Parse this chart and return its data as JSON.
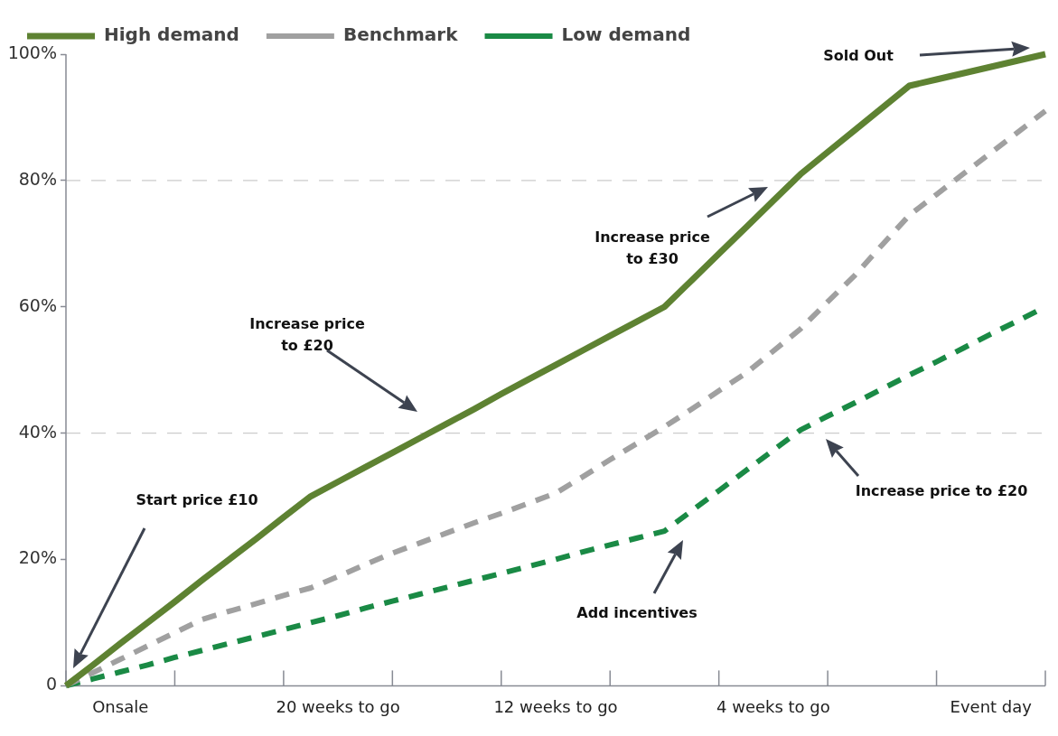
{
  "chart_data": {
    "type": "line",
    "categories": [
      null,
      null,
      "Onsale",
      null,
      null,
      null,
      null,
      null,
      null,
      null,
      "20 weeks to go",
      null,
      null,
      null,
      null,
      null,
      null,
      null,
      "12 weeks to go",
      null,
      null,
      null,
      null,
      null,
      null,
      null,
      "4 weeks to go",
      null,
      null,
      null,
      null,
      null,
      null,
      null,
      "Event day",
      null,
      null
    ],
    "series": [
      {
        "name": "High demand",
        "color": "#5e8232",
        "line_style": "solid",
        "values": [
          0,
          3.3,
          6.7,
          10,
          13.3,
          16.7,
          20,
          23.3,
          26.7,
          30,
          32.3,
          34.6,
          36.9,
          39.2,
          41.5,
          43.8,
          46.2,
          48.5,
          50.8,
          53.1,
          55.4,
          57.7,
          60,
          64.2,
          68.4,
          72.6,
          76.8,
          81,
          84.5,
          88,
          91.5,
          95,
          96,
          97,
          98,
          99,
          100
        ]
      },
      {
        "name": "Benchmark",
        "color": "#a0a0a0",
        "line_style": "dashed",
        "values": [
          0,
          2.1,
          4.2,
          6.3,
          8.4,
          10.5,
          11.8,
          13,
          14.3,
          15.5,
          17.3,
          19.2,
          21,
          22.6,
          24.2,
          25.8,
          27.3,
          28.9,
          30.5,
          33.1,
          35.8,
          38.4,
          41,
          43.8,
          46.7,
          49.5,
          53,
          56.5,
          60.8,
          65,
          69.8,
          74.5,
          77.8,
          81.1,
          84.4,
          87.7,
          91
        ]
      },
      {
        "name": "Low demand",
        "color": "#1a8a45",
        "line_style": "dashed",
        "values": [
          0,
          1.1,
          2.2,
          3.3,
          4.5,
          5.6,
          6.7,
          7.8,
          8.9,
          10,
          11.1,
          12.3,
          13.4,
          14.5,
          15.6,
          16.7,
          17.8,
          18.9,
          20,
          21.2,
          22.3,
          23.4,
          24.5,
          27.7,
          30.9,
          34.1,
          37.3,
          40.5,
          42.7,
          44.8,
          47,
          49.2,
          51.3,
          53.5,
          55.7,
          57.8,
          60
        ]
      }
    ],
    "ylim": [
      0,
      100
    ],
    "yticks": [
      {
        "value": 0,
        "label": "0"
      },
      {
        "value": 20,
        "label": "20%"
      },
      {
        "value": 40,
        "label": "40%"
      },
      {
        "value": 60,
        "label": "60%"
      },
      {
        "value": 80,
        "label": "80%"
      },
      {
        "value": 100,
        "label": "100%"
      }
    ],
    "ref_lines": [
      {
        "axis": "y",
        "value": 40,
        "color": "#cccccc",
        "line_style": "dashed"
      },
      {
        "axis": "y",
        "value": 80,
        "color": "#cccccc",
        "line_style": "dashed"
      }
    ],
    "annotations": [
      "Start price £10",
      "Increase price to £20",
      "Increase price to £30",
      "Sold Out",
      "Increase price to £20",
      "Add incentives"
    ],
    "legend": "top left",
    "marker": "none"
  }
}
